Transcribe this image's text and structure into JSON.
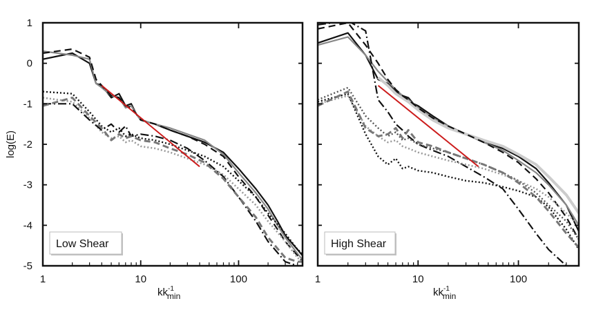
{
  "chart_data": [
    {
      "type": "line",
      "title": "Low Shear",
      "ylabel": "log(E)",
      "xlabel": {
        "base": "kk",
        "sup": "-1",
        "sub": "min"
      },
      "xscale": "log",
      "xlim": [
        1,
        450
      ],
      "ylim": [
        -5,
        1
      ],
      "xticks": [
        {
          "v": 1,
          "label": "1"
        },
        {
          "v": 10,
          "label": "10"
        },
        {
          "v": 100,
          "label": "100"
        }
      ],
      "yticks": [
        {
          "v": 1,
          "label": "1"
        },
        {
          "v": 0,
          "label": "0"
        },
        {
          "v": -1,
          "label": "-1"
        },
        {
          "v": -2,
          "label": "-2"
        },
        {
          "v": -3,
          "label": "-3"
        },
        {
          "v": -4,
          "label": "-4"
        },
        {
          "v": -5,
          "label": "-5"
        }
      ],
      "series": [
        {
          "color": "#111111",
          "dash": "",
          "width": 2.2,
          "x": [
            1,
            2,
            3,
            3.5,
            4,
            5,
            6,
            7,
            8,
            9,
            10,
            14,
            20,
            30,
            45,
            70,
            100,
            150,
            200,
            250,
            300,
            400,
            450
          ],
          "y": [
            0.1,
            0.25,
            0.0,
            -0.5,
            -0.55,
            -0.85,
            -0.75,
            -1.05,
            -1.0,
            -1.25,
            -1.4,
            -1.5,
            -1.65,
            -1.8,
            -1.95,
            -2.2,
            -2.6,
            -3.1,
            -3.5,
            -3.9,
            -4.25,
            -4.6,
            -4.75
          ]
        },
        {
          "color": "#888888",
          "dash": "",
          "width": 2.2,
          "x": [
            1,
            2,
            3,
            3.5,
            4,
            5,
            6,
            7,
            8,
            9,
            10,
            14,
            20,
            30,
            45,
            70,
            100,
            150,
            200,
            250,
            300,
            400,
            450
          ],
          "y": [
            0.3,
            0.2,
            0.1,
            -0.5,
            -0.6,
            -0.8,
            -0.85,
            -1.1,
            -1.05,
            -1.25,
            -1.4,
            -1.5,
            -1.6,
            -1.75,
            -1.9,
            -2.25,
            -2.7,
            -3.2,
            -3.6,
            -4.0,
            -4.3,
            -4.7,
            -4.85
          ]
        },
        {
          "color": "#111111",
          "dash": "10,6",
          "width": 2.2,
          "x": [
            1,
            2,
            3,
            3.5,
            4,
            5,
            6,
            7,
            8,
            9,
            10,
            14,
            20,
            30,
            45,
            70,
            100,
            150,
            200,
            250,
            300,
            400,
            450
          ],
          "y": [
            0.25,
            0.35,
            0.15,
            -0.4,
            -0.55,
            -0.8,
            -0.85,
            -1.05,
            -1.1,
            -1.25,
            -1.4,
            -1.5,
            -1.65,
            -1.8,
            -2.0,
            -2.3,
            -2.8,
            -3.3,
            -3.75,
            -4.1,
            -4.4,
            -4.75,
            -4.9
          ]
        },
        {
          "color": "#111111",
          "dash": "2,3",
          "width": 2.4,
          "x": [
            1,
            2,
            3,
            4,
            5,
            6,
            7,
            8,
            10,
            14,
            20,
            30,
            45,
            70,
            100,
            150,
            200,
            300,
            400,
            450
          ],
          "y": [
            -0.7,
            -0.75,
            -1.2,
            -1.55,
            -1.7,
            -1.6,
            -1.8,
            -1.75,
            -1.85,
            -1.9,
            -2.0,
            -2.15,
            -2.3,
            -2.55,
            -2.9,
            -3.3,
            -3.7,
            -4.2,
            -4.6,
            -4.7
          ]
        },
        {
          "color": "#999999",
          "dash": "2,3",
          "width": 2.6,
          "x": [
            1,
            2,
            3,
            4,
            5,
            6,
            7,
            8,
            10,
            14,
            20,
            30,
            45,
            70,
            100,
            150,
            200,
            300,
            400,
            450
          ],
          "y": [
            -0.85,
            -0.95,
            -1.35,
            -1.7,
            -1.85,
            -1.8,
            -1.95,
            -1.9,
            -2.05,
            -2.1,
            -2.2,
            -2.35,
            -2.5,
            -2.75,
            -3.1,
            -3.5,
            -3.9,
            -4.4,
            -4.8,
            -4.9
          ]
        },
        {
          "color": "#111111",
          "dash": "12,4,2,4",
          "width": 2.2,
          "x": [
            1,
            2,
            3,
            4,
            5,
            6,
            7,
            8,
            10,
            14,
            20,
            30,
            45,
            70,
            100,
            150,
            200,
            300,
            400,
            450
          ],
          "y": [
            -1.0,
            -1.0,
            -1.4,
            -1.65,
            -1.5,
            -1.7,
            -1.55,
            -1.8,
            -1.75,
            -1.8,
            -1.9,
            -2.1,
            -2.4,
            -2.8,
            -3.3,
            -3.9,
            -4.4,
            -4.9,
            -5.0,
            -5.0
          ]
        },
        {
          "color": "#777777",
          "dash": "9,5",
          "width": 3.0,
          "x": [
            1,
            2,
            3,
            4,
            5,
            6,
            7,
            8,
            10,
            14,
            20,
            30,
            45,
            70,
            100,
            150,
            200,
            300,
            400,
            450
          ],
          "y": [
            -1.05,
            -0.85,
            -1.3,
            -1.6,
            -1.9,
            -1.75,
            -1.85,
            -1.8,
            -1.9,
            -1.95,
            -2.1,
            -2.25,
            -2.45,
            -2.85,
            -3.3,
            -3.8,
            -4.3,
            -4.8,
            -4.9,
            -4.9
          ]
        },
        {
          "color": "#cc1c1c",
          "dash": "",
          "width": 2.0,
          "x": [
            4,
            40
          ],
          "y": [
            -0.55,
            -2.55
          ]
        }
      ]
    },
    {
      "type": "line",
      "title": "High Shear",
      "ylabel": "",
      "xlabel": {
        "base": "kk",
        "sup": "-1",
        "sub": "min"
      },
      "xscale": "log",
      "xlim": [
        1,
        400
      ],
      "ylim": [
        -5,
        1
      ],
      "xticks": [
        {
          "v": 1,
          "label": "1"
        },
        {
          "v": 10,
          "label": "10"
        },
        {
          "v": 100,
          "label": "100"
        }
      ],
      "yticks": [],
      "series": [
        {
          "color": "#111111",
          "dash": "",
          "width": 2.2,
          "x": [
            1,
            2,
            3,
            4,
            5,
            6,
            7,
            8,
            9,
            10,
            14,
            20,
            30,
            45,
            70,
            100,
            150,
            200,
            300,
            400
          ],
          "y": [
            0.5,
            0.75,
            0.2,
            -0.4,
            -0.5,
            -0.7,
            -0.8,
            -0.85,
            -1.0,
            -1.05,
            -1.3,
            -1.55,
            -1.75,
            -1.95,
            -2.1,
            -2.3,
            -2.6,
            -2.95,
            -3.5,
            -4.15
          ]
        },
        {
          "color": "#888888",
          "dash": "",
          "width": 2.2,
          "x": [
            1,
            2,
            3,
            4,
            5,
            6,
            7,
            8,
            9,
            10,
            14,
            20,
            30,
            45,
            70,
            100,
            150,
            200,
            300,
            400
          ],
          "y": [
            0.45,
            0.65,
            0.2,
            -0.2,
            -0.45,
            -0.65,
            -0.8,
            -0.9,
            -1.0,
            -1.1,
            -1.35,
            -1.55,
            -1.75,
            -1.95,
            -2.15,
            -2.4,
            -2.7,
            -3.0,
            -3.5,
            -4.0
          ]
        },
        {
          "color": "#cccccc",
          "dash": "",
          "width": 4.0,
          "x": [
            4,
            5,
            6,
            8,
            10,
            14,
            20,
            30,
            45,
            70,
            100,
            150,
            200,
            300,
            400
          ],
          "y": [
            -0.35,
            -0.55,
            -0.75,
            -0.95,
            -1.15,
            -1.4,
            -1.6,
            -1.75,
            -1.9,
            -2.05,
            -2.25,
            -2.5,
            -2.8,
            -3.25,
            -3.7
          ]
        },
        {
          "color": "#111111",
          "dash": "10,6",
          "width": 2.2,
          "x": [
            1,
            2,
            3,
            4,
            5,
            6,
            7,
            8,
            10,
            14,
            20,
            30,
            45,
            70,
            100,
            150,
            200,
            300,
            400
          ],
          "y": [
            0.85,
            1.0,
            0.45,
            0.0,
            -0.4,
            -0.65,
            -0.8,
            -0.9,
            -1.1,
            -1.35,
            -1.55,
            -1.75,
            -1.95,
            -2.2,
            -2.45,
            -2.85,
            -3.2,
            -3.8,
            -4.35
          ]
        },
        {
          "color": "#111111",
          "dash": "12,4,2,4",
          "width": 2.2,
          "x": [
            1,
            2,
            3,
            4,
            5,
            6,
            7,
            8,
            10,
            14,
            20,
            30,
            45,
            70,
            100,
            150,
            200,
            300
          ],
          "y": [
            0.95,
            1.05,
            0.8,
            -0.9,
            -1.2,
            -1.5,
            -1.65,
            -1.8,
            -2.0,
            -2.15,
            -2.3,
            -2.55,
            -2.8,
            -3.1,
            -3.6,
            -4.2,
            -4.6,
            -5.0
          ]
        },
        {
          "color": "#555555",
          "dash": "2,3",
          "width": 2.4,
          "x": [
            1,
            2,
            3,
            4,
            5,
            6,
            7,
            8,
            10,
            14,
            20,
            30,
            45,
            70,
            100,
            150,
            200,
            300,
            400
          ],
          "y": [
            -0.9,
            -0.6,
            -1.3,
            -1.6,
            -1.8,
            -1.7,
            -1.9,
            -1.85,
            -2.0,
            -2.1,
            -2.2,
            -2.35,
            -2.5,
            -2.7,
            -2.9,
            -3.2,
            -3.5,
            -3.9,
            -4.35
          ]
        },
        {
          "color": "#999999",
          "dash": "2,3",
          "width": 2.6,
          "x": [
            1,
            2,
            3,
            4,
            5,
            6,
            7,
            8,
            10,
            14,
            20,
            30,
            45,
            70,
            100,
            150,
            200,
            300,
            400
          ],
          "y": [
            -1.0,
            -0.8,
            -1.55,
            -1.8,
            -1.95,
            -1.9,
            -2.05,
            -2.1,
            -2.2,
            -2.3,
            -2.4,
            -2.5,
            -2.6,
            -2.75,
            -2.9,
            -3.1,
            -3.3,
            -3.7,
            -4.0
          ]
        },
        {
          "color": "#111111",
          "dash": "2,3",
          "width": 2.4,
          "x": [
            1,
            2,
            3,
            4,
            5,
            6,
            7,
            8,
            10,
            14,
            20,
            30,
            45,
            70,
            100,
            150,
            200,
            300,
            400
          ],
          "y": [
            -0.95,
            -0.75,
            -1.75,
            -2.3,
            -2.5,
            -2.35,
            -2.6,
            -2.55,
            -2.65,
            -2.7,
            -2.8,
            -2.9,
            -2.95,
            -3.05,
            -3.15,
            -3.3,
            -3.55,
            -4.1,
            -4.6
          ]
        },
        {
          "color": "#777777",
          "dash": "9,5",
          "width": 3.0,
          "x": [
            1,
            2,
            3,
            4,
            5,
            6,
            7,
            8,
            10,
            14,
            20,
            30,
            45,
            70,
            100,
            150,
            200,
            300,
            400
          ],
          "y": [
            -1.05,
            -0.7,
            -1.6,
            -1.8,
            -1.75,
            -1.6,
            -1.85,
            -1.65,
            -1.95,
            -2.05,
            -2.2,
            -2.35,
            -2.5,
            -2.7,
            -2.95,
            -3.3,
            -3.65,
            -4.2,
            -4.55
          ]
        },
        {
          "color": "#cc1c1c",
          "dash": "",
          "width": 2.0,
          "x": [
            4,
            40
          ],
          "y": [
            -0.55,
            -2.55
          ]
        }
      ]
    }
  ]
}
